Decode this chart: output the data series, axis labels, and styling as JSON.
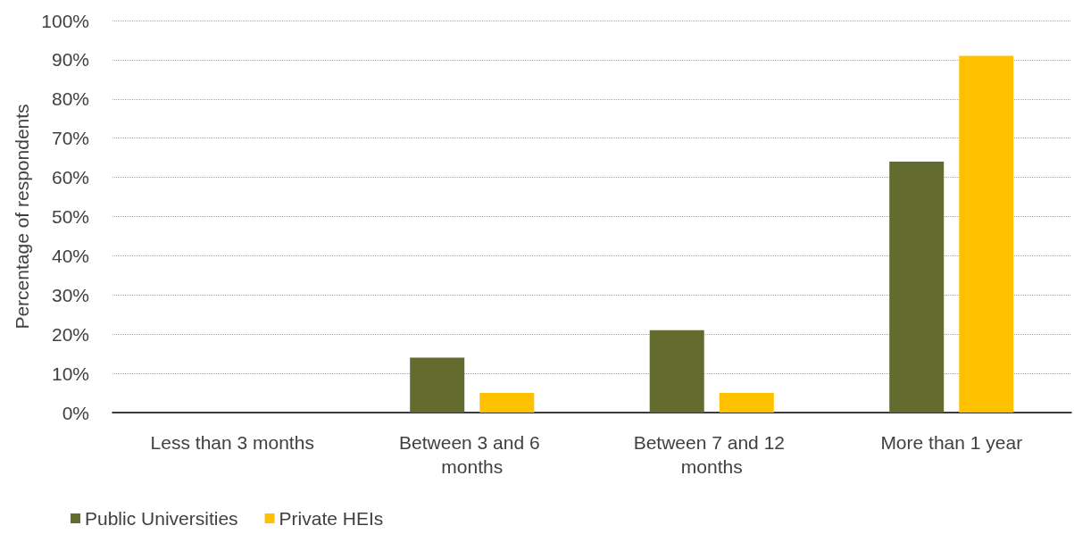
{
  "chart_data": {
    "type": "bar",
    "ylabel": "Percentage of respondents",
    "categories": [
      "Less than 3 months",
      "Between 3 and 6 months",
      "Between 7 and 12 months",
      "More than 1 year"
    ],
    "series": [
      {
        "name": "Public Universities",
        "color": "#636b2f",
        "values": [
          0,
          14,
          21,
          64
        ]
      },
      {
        "name": "Private HEIs",
        "color": "#ffc000",
        "values": [
          0,
          5,
          5,
          91
        ]
      }
    ],
    "ylim": [
      0,
      100
    ],
    "yticks": [
      {
        "value": 0,
        "label": "0%"
      },
      {
        "value": 10,
        "label": "10%"
      },
      {
        "value": 20,
        "label": "20%"
      },
      {
        "value": 30,
        "label": "30%"
      },
      {
        "value": 40,
        "label": "40%"
      },
      {
        "value": 50,
        "label": "50%"
      },
      {
        "value": 60,
        "label": "60%"
      },
      {
        "value": 70,
        "label": "70%"
      },
      {
        "value": 80,
        "label": "80%"
      },
      {
        "value": 90,
        "label": "90%"
      },
      {
        "value": 100,
        "label": "100%"
      }
    ],
    "grid": "y",
    "legend": "bottom left"
  }
}
